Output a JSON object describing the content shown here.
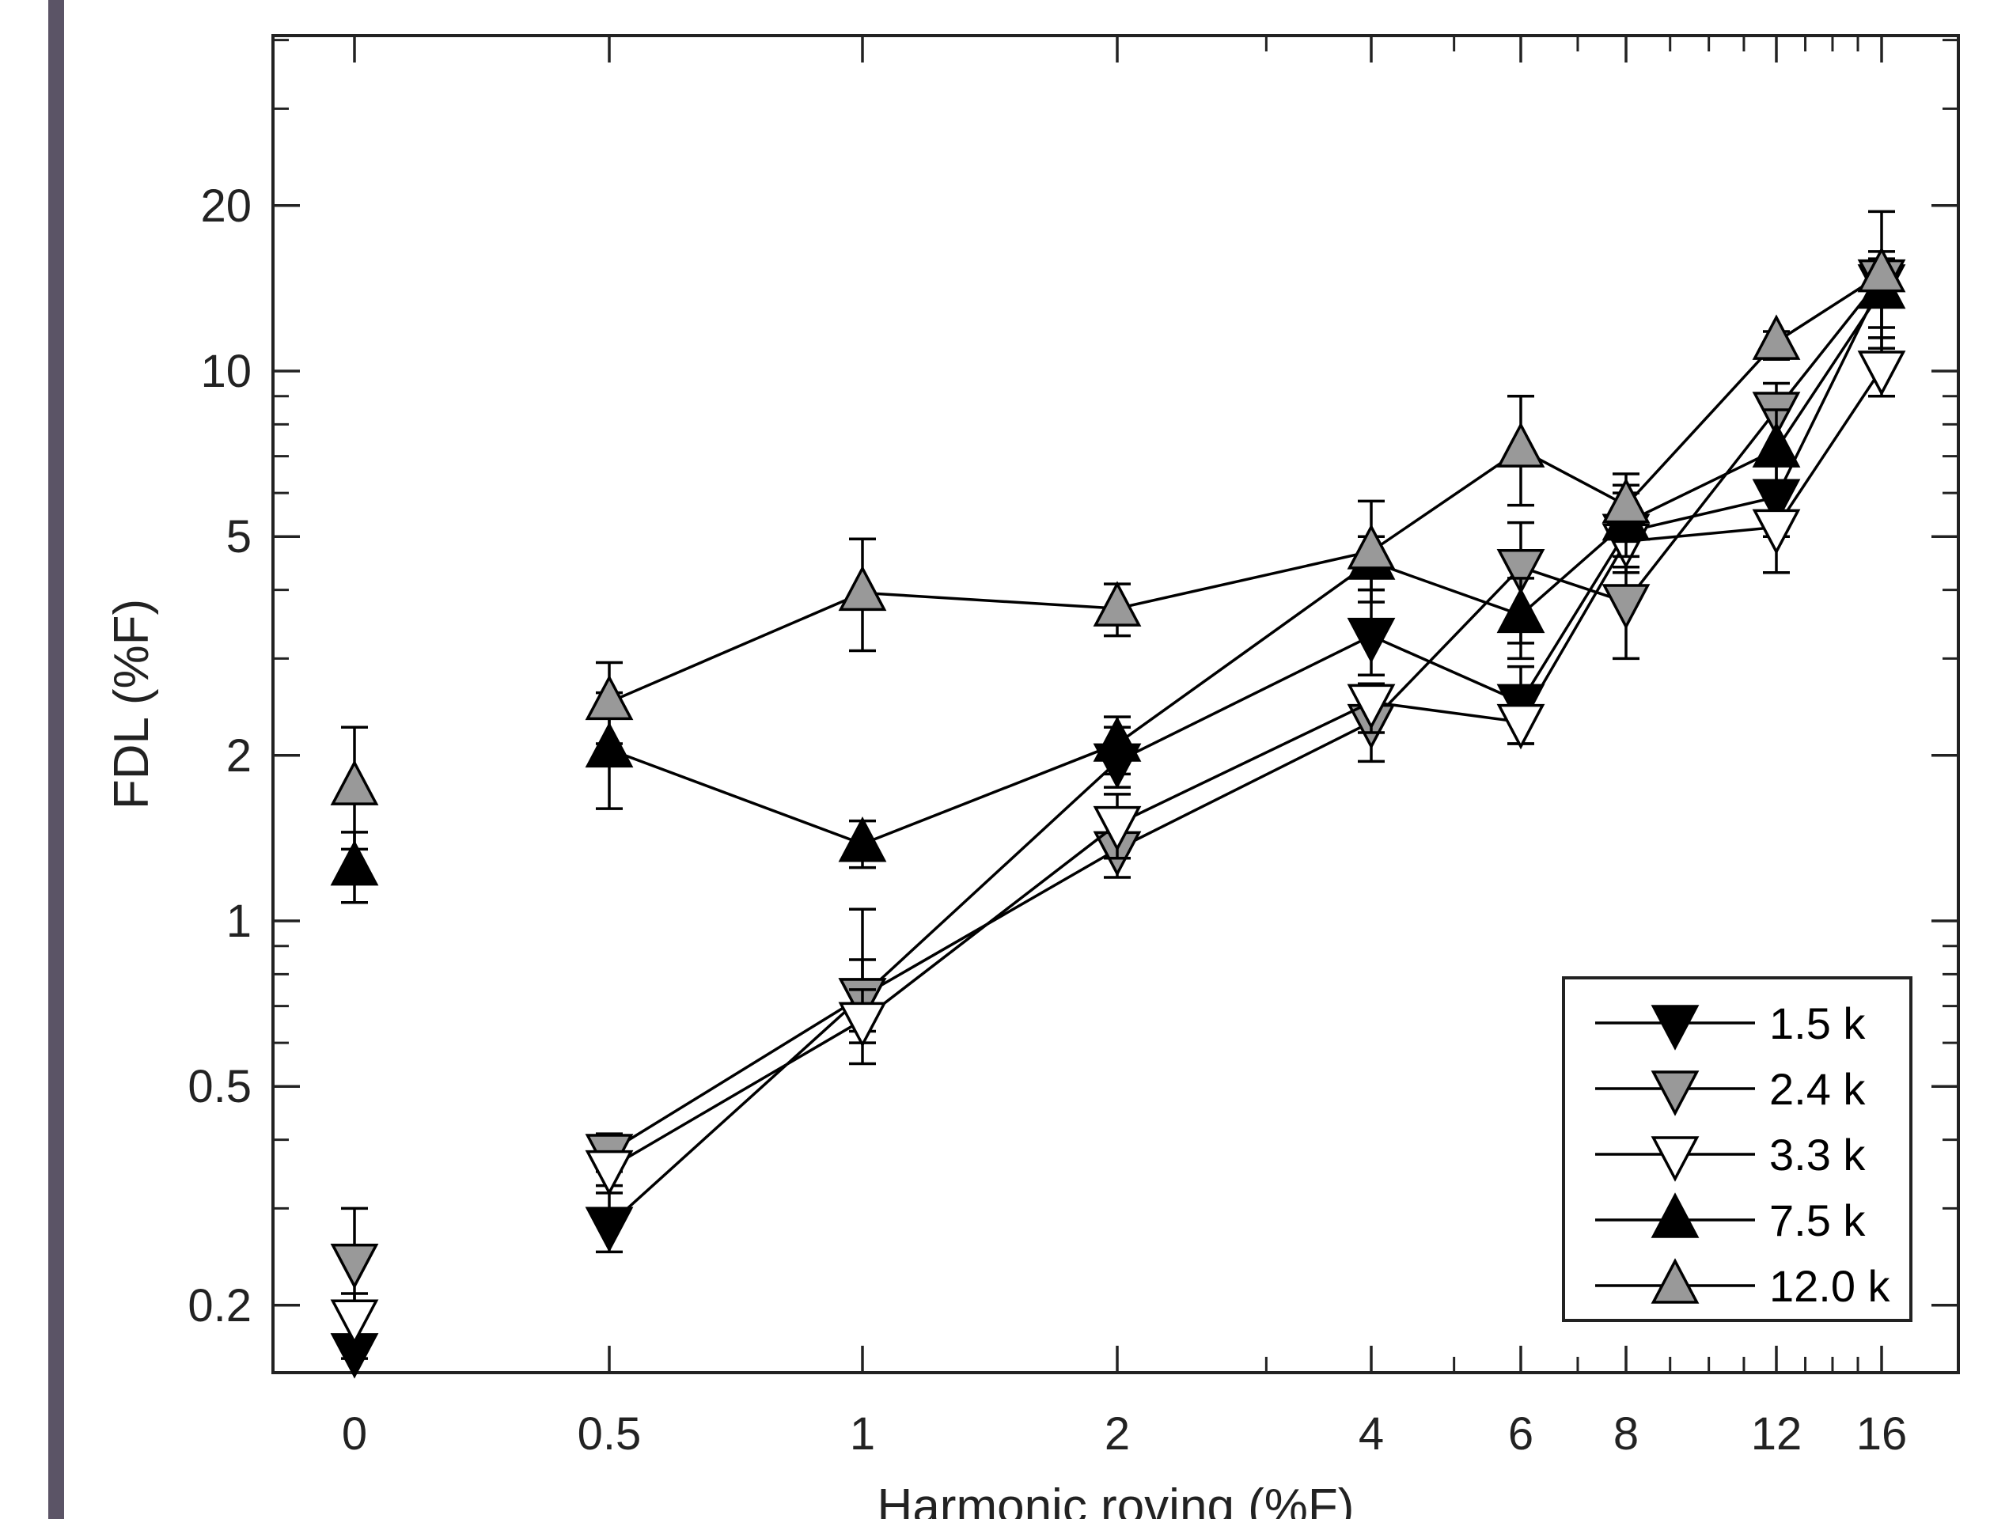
{
  "chart_data": {
    "type": "line",
    "title": "",
    "xlabel": "Harmonic roving (%F)",
    "ylabel": "FDL (%F)",
    "y_scale": "log",
    "ylim": [
      0.16,
      48
    ],
    "x_categories": [
      "0",
      "0.5",
      "1",
      "2",
      "4",
      "6",
      "8",
      "12",
      "16"
    ],
    "y_ticks": [
      0.2,
      0.5,
      1,
      2,
      5,
      10,
      20
    ],
    "y_tick_labels": [
      "0.2",
      "0.5",
      "1",
      "2",
      "5",
      "10",
      "20"
    ],
    "legend_position": "bottom-right",
    "series": [
      {
        "name": "1.5 k",
        "marker": "triangle-down",
        "fill": "#000000",
        "values": [
          0.165,
          0.28,
          0.73,
          1.95,
          3.3,
          2.5,
          5.1,
          5.9,
          14.5
        ],
        "err_hi": [
          0.175,
          0.32,
          0.85,
          2.25,
          4.0,
          2.9,
          6.0,
          7.2,
          19.5
        ],
        "err_lo": [
          0.16,
          0.25,
          0.63,
          1.75,
          2.8,
          2.1,
          4.3,
          5.0,
          11.5
        ]
      },
      {
        "name": "2.4 k",
        "marker": "triangle-down",
        "fill": "#999999",
        "values": [
          0.24,
          0.38,
          0.73,
          1.35,
          2.3,
          4.4,
          3.8,
          8.5,
          14.8
        ],
        "err_hi": [
          0.3,
          0.41,
          1.05,
          1.5,
          2.6,
          5.3,
          4.4,
          9.5,
          15.5
        ],
        "err_lo": [
          0.2,
          0.35,
          0.6,
          1.2,
          1.95,
          3.2,
          3.0,
          7.0,
          11.0
        ]
      },
      {
        "name": "3.3 k",
        "marker": "triangle-down",
        "fill": "#ffffff",
        "values": [
          0.19,
          0.355,
          0.66,
          1.5,
          2.5,
          2.3,
          4.9,
          5.2,
          10.1
        ],
        "err_hi": [
          0.21,
          0.38,
          0.75,
          1.7,
          2.7,
          2.5,
          5.4,
          6.0,
          11.5
        ],
        "err_lo": [
          0.17,
          0.33,
          0.55,
          1.3,
          2.2,
          2.1,
          4.3,
          4.3,
          9.0
        ]
      },
      {
        "name": "7.5 k",
        "marker": "triangle-up",
        "fill": "#000000",
        "values": [
          1.25,
          2.05,
          1.38,
          2.1,
          4.5,
          3.6,
          5.3,
          7.2,
          14.0
        ],
        "err_hi": [
          1.45,
          2.6,
          1.52,
          2.35,
          5.0,
          4.2,
          6.2,
          8.5,
          16.5
        ],
        "err_lo": [
          1.08,
          1.6,
          1.25,
          1.85,
          4.0,
          3.0,
          4.6,
          6.0,
          12.0
        ]
      },
      {
        "name": "12.0 k",
        "marker": "triangle-up",
        "fill": "#999999",
        "values": [
          1.75,
          2.5,
          3.95,
          3.7,
          4.7,
          7.2,
          5.7,
          11.3,
          15.0
        ],
        "err_hi": [
          2.25,
          2.95,
          4.95,
          4.1,
          5.8,
          9.0,
          6.5,
          11.8,
          16.0
        ],
        "err_lo": [
          1.35,
          2.1,
          3.1,
          3.3,
          3.8,
          5.7,
          4.9,
          10.5,
          13.5
        ]
      }
    ]
  }
}
